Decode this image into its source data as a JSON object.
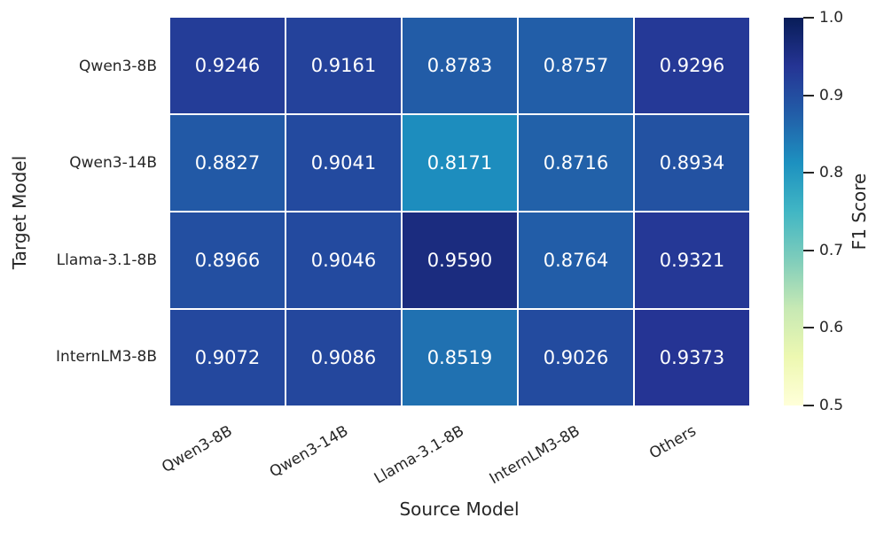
{
  "figure": {
    "background_color": "#ffffff",
    "text_color": "#262626",
    "annotation_text_color": "#ffffff",
    "grid_line_color": "#ffffff"
  },
  "chart_data": {
    "type": "heatmap",
    "title": "",
    "xlabel": "Source Model",
    "ylabel": "Target Model",
    "colorbar_label": "F1 Score",
    "x_categories": [
      "Qwen3-8B",
      "Qwen3-14B",
      "Llama-3.1-8B",
      "InternLM3-8B",
      "Others"
    ],
    "y_categories": [
      "Qwen3-8B",
      "Qwen3-14B",
      "Llama-3.1-8B",
      "InternLM3-8B"
    ],
    "values": [
      [
        0.9246,
        0.9161,
        0.8783,
        0.8757,
        0.9296
      ],
      [
        0.8827,
        0.9041,
        0.8171,
        0.8716,
        0.8934
      ],
      [
        0.8966,
        0.9046,
        0.959,
        0.8764,
        0.9321
      ],
      [
        0.9072,
        0.9086,
        0.8519,
        0.9026,
        0.9373
      ]
    ],
    "value_decimals": 4,
    "vmin": 0.5,
    "vmax": 1.0,
    "colorbar_ticks": [
      1.0,
      0.9,
      0.8,
      0.7,
      0.6,
      0.5
    ],
    "colorbar_tick_labels": [
      "1.0",
      "0.9",
      "0.8",
      "0.7",
      "0.6",
      "0.5"
    ],
    "legend_position": "right-colorbar",
    "xtick_rotation_deg": 30,
    "colormap": {
      "name": "YlGnBu",
      "stops": [
        "#ffffd9",
        "#edf8b1",
        "#c7e9b4",
        "#7fcdbb",
        "#41b6c4",
        "#1d91c0",
        "#225ea8",
        "#253494",
        "#081d58"
      ]
    }
  }
}
